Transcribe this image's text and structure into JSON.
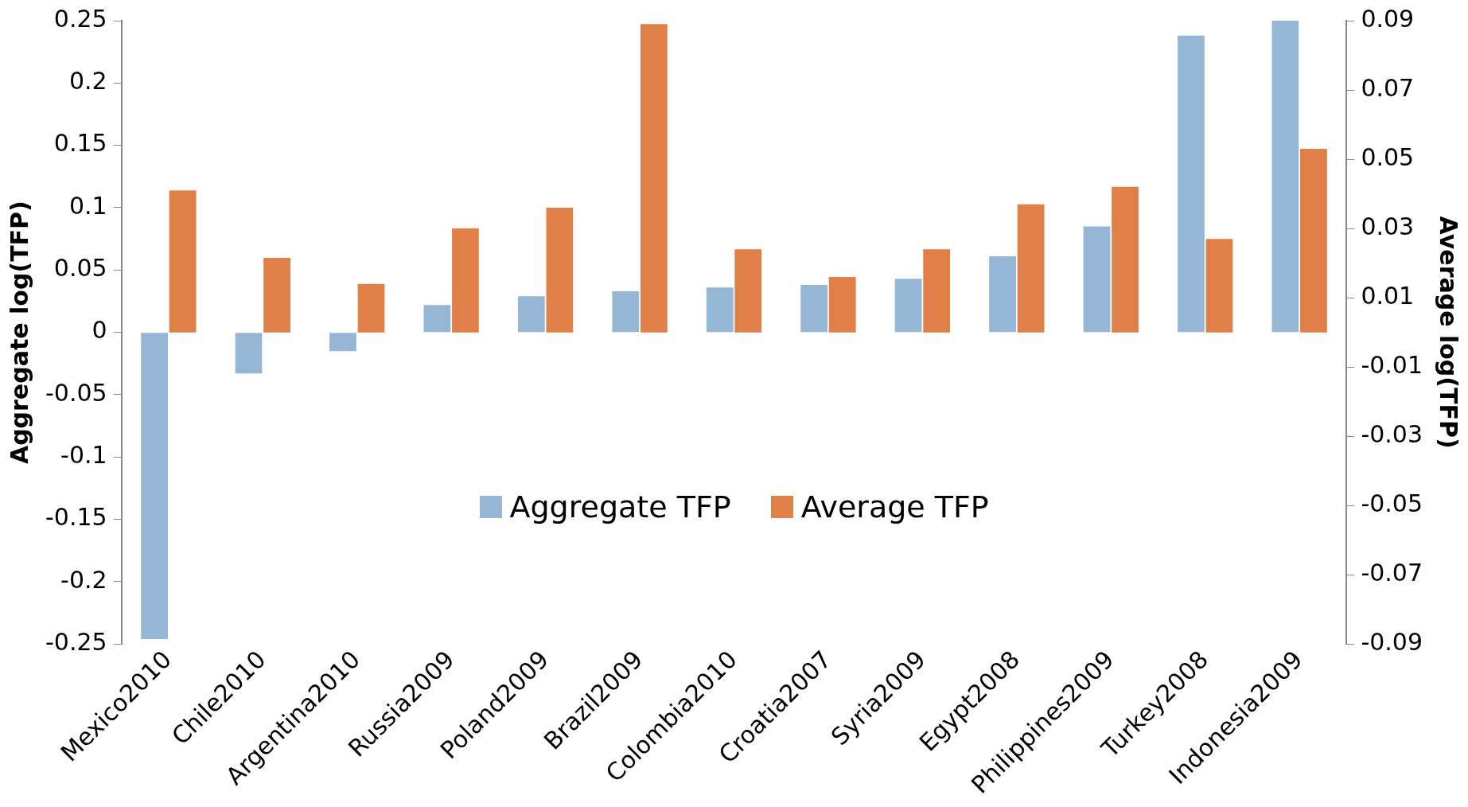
{
  "chart_data": {
    "type": "bar",
    "categories": [
      "Mexico2010",
      "Chile2010",
      "Argentina2010",
      "Russia2009",
      "Poland2009",
      "Brazil2009",
      "Colombia2010",
      "Croatia2007",
      "Syria2009",
      "Egypt2008",
      "Philippines2009",
      "Turkey2008",
      "Indonesia2009"
    ],
    "series": [
      {
        "name": "Aggregate TFP",
        "color": "#95b6d4",
        "values": [
          -0.246,
          -0.033,
          -0.015,
          0.022,
          0.029,
          0.033,
          0.036,
          0.038,
          0.043,
          0.061,
          0.085,
          0.238,
          0.25
        ]
      },
      {
        "name": "Average TFP",
        "color": "#e07f47",
        "axis": "y2",
        "values": [
          0.041,
          0.0215,
          0.014,
          0.03,
          0.036,
          0.089,
          0.024,
          0.016,
          0.024,
          0.037,
          0.042,
          0.027,
          0.053
        ]
      }
    ],
    "ylabel": "Aggregate log(TFP)",
    "y2label": "Average log(TFP)",
    "ylim": [
      -0.25,
      0.25
    ],
    "yticks": [
      -0.25,
      -0.2,
      -0.15,
      -0.1,
      -0.05,
      0,
      0.05,
      0.1,
      0.15,
      0.2,
      0.25
    ],
    "y2lim": [
      -0.09,
      0.09
    ],
    "y2ticks": [
      -0.09,
      -0.07,
      -0.05,
      -0.03,
      -0.01,
      0.01,
      0.03,
      0.05,
      0.07,
      0.09
    ],
    "grid": false,
    "legend": "bottom"
  }
}
